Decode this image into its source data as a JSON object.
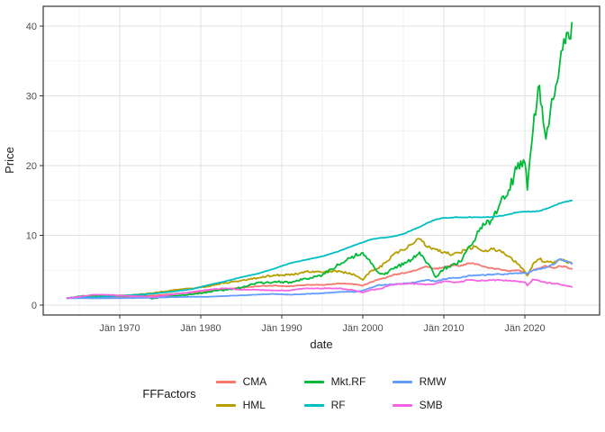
{
  "figure": {
    "background": "#ffffff"
  },
  "axes": {
    "x": {
      "title": "date",
      "ticks": [
        {
          "label": "Jän 1970",
          "year": 1970
        },
        {
          "label": "Jän 1980",
          "year": 1980
        },
        {
          "label": "Jän 1990",
          "year": 1990
        },
        {
          "label": "Jän 2000",
          "year": 2000
        },
        {
          "label": "Jän 2010",
          "year": 2010
        },
        {
          "label": "Jän 2020",
          "year": 2020
        }
      ],
      "minor_years": [
        1965,
        1975,
        1985,
        1995,
        2005,
        2015,
        2025
      ]
    },
    "y": {
      "title": "Price",
      "ticks": [
        0,
        10,
        20,
        30,
        40
      ],
      "minor": [
        5,
        15,
        25,
        35
      ]
    }
  },
  "legend": {
    "title": "FFFactors",
    "items": [
      {
        "label": "CMA",
        "color": "#F8766D"
      },
      {
        "label": "Mkt.RF",
        "color": "#00BA38"
      },
      {
        "label": "RMW",
        "color": "#619CFF"
      },
      {
        "label": "HML",
        "color": "#B79F00"
      },
      {
        "label": "RF",
        "color": "#00BFC4"
      },
      {
        "label": "SMB",
        "color": "#F564E2"
      }
    ]
  },
  "chart_data": {
    "type": "line",
    "title": "",
    "xlabel": "date",
    "ylabel": "Price",
    "ylim": [
      0,
      41
    ],
    "x_range": [
      1960.5,
      2029
    ],
    "grid": true,
    "legend_position": "bottom",
    "legend_title": "FFFactors",
    "x_years": [
      1963.5,
      1965,
      1967,
      1969,
      1971,
      1973,
      1974,
      1975,
      1977,
      1979,
      1981,
      1983,
      1985,
      1987,
      1989,
      1991,
      1993,
      1995,
      1997,
      1999,
      2000,
      2001,
      2002,
      2003,
      2004,
      2005,
      2006,
      2007,
      2008,
      2009,
      2010,
      2011,
      2012,
      2013,
      2014,
      2015,
      2016,
      2017,
      2018,
      2019,
      2020,
      2020.3,
      2021,
      2021.8,
      2022.6,
      2023.5,
      2024.3,
      2025,
      2025.8
    ],
    "series": [
      {
        "name": "CMA",
        "color": "#F8766D",
        "values": [
          1.0,
          1.05,
          1.1,
          1.15,
          1.2,
          1.3,
          1.35,
          1.45,
          1.65,
          1.8,
          2.05,
          2.3,
          2.5,
          2.7,
          2.8,
          2.7,
          2.9,
          2.9,
          3.1,
          3.0,
          2.8,
          3.3,
          3.7,
          4.0,
          4.4,
          4.6,
          4.8,
          5.2,
          5.5,
          5.2,
          5.4,
          5.7,
          5.6,
          6.0,
          5.9,
          5.5,
          5.3,
          5.1,
          4.9,
          5.0,
          4.7,
          4.5,
          5.0,
          5.3,
          5.6,
          5.3,
          5.6,
          5.5,
          5.2
        ]
      },
      {
        "name": "HML",
        "color": "#B79F00",
        "values": [
          1.0,
          1.15,
          1.3,
          1.35,
          1.4,
          1.6,
          1.7,
          1.9,
          2.2,
          2.4,
          2.7,
          3.2,
          3.5,
          3.9,
          4.3,
          4.3,
          4.8,
          4.7,
          4.9,
          4.3,
          3.6,
          4.9,
          5.3,
          6.3,
          7.5,
          7.9,
          8.7,
          9.5,
          8.3,
          8.0,
          7.6,
          7.2,
          7.5,
          8.2,
          8.4,
          7.7,
          8.0,
          7.8,
          7.0,
          6.0,
          4.8,
          4.2,
          5.9,
          6.6,
          6.2,
          6.0,
          6.6,
          6.3,
          6.0
        ]
      },
      {
        "name": "Mkt.RF",
        "color": "#00BA38",
        "values": [
          1.0,
          1.25,
          1.45,
          1.35,
          1.3,
          1.45,
          0.9,
          1.15,
          1.35,
          1.55,
          1.9,
          2.2,
          2.5,
          3.2,
          3.3,
          3.3,
          3.8,
          4.3,
          5.8,
          7.0,
          7.5,
          6.0,
          4.6,
          4.5,
          5.5,
          5.8,
          6.5,
          7.6,
          6.0,
          4.0,
          5.2,
          5.8,
          6.2,
          8.3,
          9.9,
          11.5,
          12.3,
          14.8,
          16.5,
          19.5,
          20.4,
          16.5,
          25.0,
          31.5,
          23.8,
          29.5,
          34.5,
          37.5,
          40.5
        ]
      },
      {
        "name": "RF",
        "color": "#00BFC4",
        "values": [
          1.0,
          1.07,
          1.15,
          1.27,
          1.4,
          1.55,
          1.63,
          1.75,
          2.0,
          2.3,
          2.9,
          3.4,
          4.0,
          4.5,
          5.2,
          6.0,
          6.5,
          7.0,
          7.7,
          8.6,
          9.0,
          9.4,
          9.6,
          9.7,
          9.9,
          10.2,
          10.7,
          11.2,
          11.8,
          12.3,
          12.5,
          12.55,
          12.6,
          12.6,
          12.6,
          12.6,
          12.65,
          12.8,
          13.0,
          13.3,
          13.4,
          13.4,
          13.45,
          13.5,
          13.8,
          14.2,
          14.6,
          14.8,
          15.0
        ]
      },
      {
        "name": "RMW",
        "color": "#619CFF",
        "values": [
          1.0,
          1.0,
          0.97,
          1.0,
          1.0,
          1.05,
          1.05,
          1.1,
          1.15,
          1.2,
          1.2,
          1.3,
          1.4,
          1.5,
          1.6,
          1.5,
          1.6,
          1.7,
          1.9,
          1.9,
          2.1,
          2.5,
          2.9,
          2.9,
          3.0,
          3.1,
          3.2,
          3.4,
          3.6,
          3.4,
          3.7,
          3.9,
          3.9,
          4.2,
          4.3,
          4.3,
          4.4,
          4.4,
          4.5,
          4.6,
          4.6,
          4.5,
          5.0,
          5.2,
          5.4,
          5.8,
          6.6,
          6.3,
          5.9
        ]
      },
      {
        "name": "SMB",
        "color": "#F564E2",
        "values": [
          1.0,
          1.2,
          1.5,
          1.45,
          1.3,
          1.25,
          1.15,
          1.3,
          1.6,
          1.9,
          2.2,
          2.4,
          2.2,
          2.2,
          2.1,
          2.1,
          2.4,
          2.4,
          2.4,
          2.1,
          1.8,
          2.2,
          2.3,
          2.7,
          3.0,
          3.0,
          3.1,
          3.0,
          3.0,
          3.1,
          3.4,
          3.3,
          3.3,
          3.6,
          3.5,
          3.5,
          3.6,
          3.6,
          3.5,
          3.4,
          3.3,
          2.8,
          3.7,
          3.5,
          3.2,
          3.1,
          3.0,
          2.8,
          2.6
        ]
      }
    ]
  },
  "colors": {
    "grid_major": "#e2e2e2",
    "grid_minor": "#efefef",
    "panel_border": "#333333",
    "tick_mark": "#333333",
    "tick_text": "#4d4d4d",
    "title_text": "#1a1a1a"
  }
}
